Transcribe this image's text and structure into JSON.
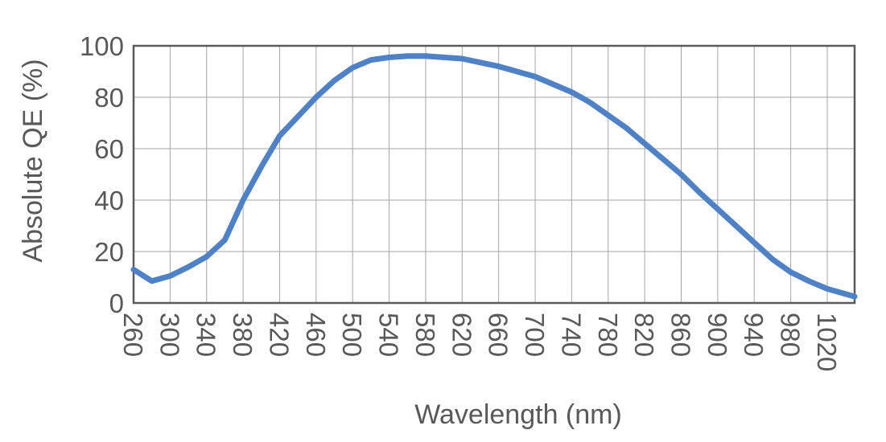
{
  "chart_data": {
    "type": "line",
    "xlabel": "Wavelength (nm)",
    "ylabel": "Absolute QE (%)",
    "xlim": [
      260,
      1050
    ],
    "ylim": [
      0,
      100
    ],
    "x_ticks": [
      260,
      300,
      340,
      380,
      420,
      460,
      500,
      540,
      580,
      620,
      660,
      700,
      740,
      780,
      820,
      860,
      900,
      940,
      980,
      1020
    ],
    "y_ticks": [
      0,
      20,
      40,
      60,
      80,
      100
    ],
    "grid": true,
    "legend": "none",
    "series": [
      {
        "color": "#4f81c7",
        "points": [
          [
            260,
            13
          ],
          [
            280,
            8.5
          ],
          [
            300,
            10.5
          ],
          [
            320,
            14
          ],
          [
            340,
            18
          ],
          [
            360,
            24.5
          ],
          [
            380,
            40
          ],
          [
            400,
            53
          ],
          [
            420,
            65
          ],
          [
            440,
            72.5
          ],
          [
            460,
            80
          ],
          [
            480,
            86.5
          ],
          [
            500,
            91.5
          ],
          [
            520,
            94.5
          ],
          [
            540,
            95.5
          ],
          [
            560,
            96
          ],
          [
            580,
            96
          ],
          [
            600,
            95.5
          ],
          [
            620,
            95
          ],
          [
            640,
            93.5
          ],
          [
            660,
            92
          ],
          [
            680,
            90
          ],
          [
            700,
            88
          ],
          [
            720,
            85
          ],
          [
            740,
            82
          ],
          [
            760,
            78
          ],
          [
            780,
            73
          ],
          [
            800,
            68
          ],
          [
            820,
            62
          ],
          [
            840,
            56
          ],
          [
            860,
            50
          ],
          [
            880,
            43
          ],
          [
            900,
            36.5
          ],
          [
            920,
            30
          ],
          [
            940,
            23.5
          ],
          [
            960,
            17
          ],
          [
            980,
            12
          ],
          [
            1000,
            8.5
          ],
          [
            1020,
            5.5
          ],
          [
            1050,
            2.5
          ]
        ]
      }
    ]
  }
}
